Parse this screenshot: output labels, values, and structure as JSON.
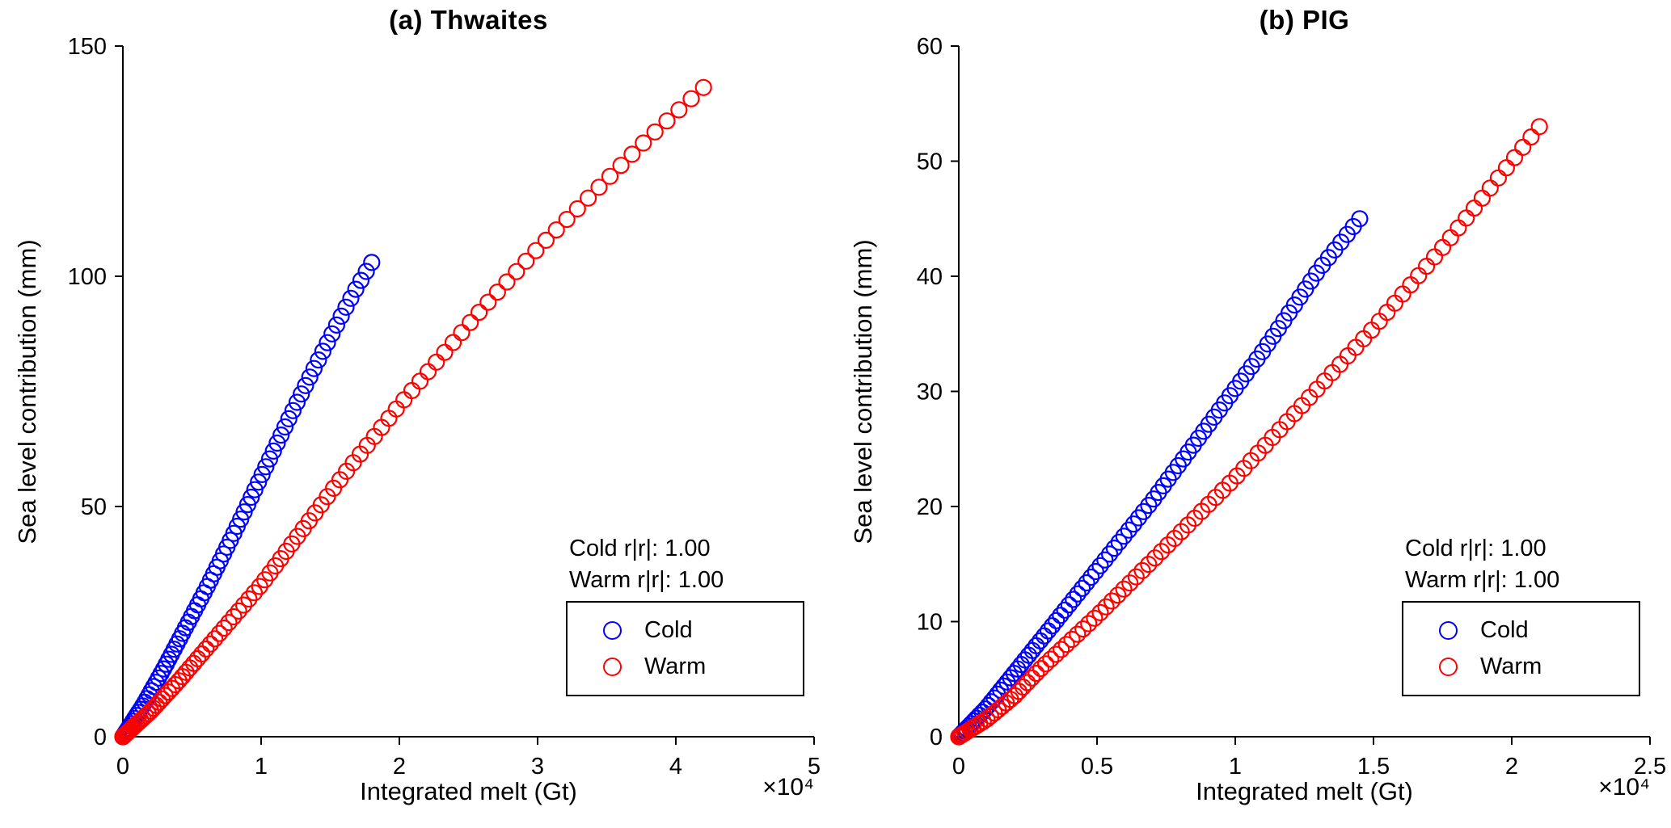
{
  "figure": {
    "background": "#ffffff",
    "text_color": "#000000"
  },
  "chart_data": [
    {
      "type": "scatter",
      "title": "(a) Thwaites",
      "xlabel": "Integrated melt (Gt)",
      "ylabel": "Sea level contribution (mm)",
      "x_offset_label": "×10⁴",
      "x_scale_factor": 10000,
      "xlim": [
        0,
        5
      ],
      "ylim": [
        0,
        150
      ],
      "xticks": [
        0,
        1,
        2,
        3,
        4,
        5
      ],
      "yticks": [
        0,
        50,
        100,
        150
      ],
      "grid": false,
      "annotations": [
        "Cold r|r|: 1.00",
        "Warm r|r|: 1.00"
      ],
      "legend": {
        "position": "lower right",
        "entries": [
          {
            "label": "Cold",
            "color": "#0000ff"
          },
          {
            "label": "Warm",
            "color": "#ff0000"
          }
        ]
      },
      "series": [
        {
          "name": "Cold",
          "color": "#0000ff",
          "marker": "circle",
          "n_markers": 80,
          "density_power": 1.55,
          "points": [
            [
              0,
              0
            ],
            [
              0.15,
              7
            ],
            [
              0.3,
              15
            ],
            [
              0.45,
              23.5
            ],
            [
              0.6,
              32
            ],
            [
              0.8,
              44
            ],
            [
              1.0,
              56.5
            ],
            [
              1.2,
              69
            ],
            [
              1.4,
              81
            ],
            [
              1.6,
              92.5
            ],
            [
              1.7,
              98
            ],
            [
              1.8,
              103
            ]
          ]
        },
        {
          "name": "Warm",
          "color": "#ff0000",
          "marker": "circle",
          "n_markers": 100,
          "density_power": 1.9,
          "points": [
            [
              0,
              0
            ],
            [
              0.2,
              5.5
            ],
            [
              0.4,
              12
            ],
            [
              0.6,
              19
            ],
            [
              0.8,
              26
            ],
            [
              1.0,
              33
            ],
            [
              1.2,
              41
            ],
            [
              1.4,
              49
            ],
            [
              1.6,
              57
            ],
            [
              1.8,
              64.5
            ],
            [
              2.0,
              72
            ],
            [
              2.2,
              79
            ],
            [
              2.4,
              86
            ],
            [
              2.6,
              93
            ],
            [
              2.8,
              99.5
            ],
            [
              3.0,
              106
            ],
            [
              3.2,
              112
            ],
            [
              3.4,
              118
            ],
            [
              3.6,
              124
            ],
            [
              3.8,
              130
            ],
            [
              4.0,
              135.5
            ],
            [
              4.2,
              141
            ]
          ]
        }
      ]
    },
    {
      "type": "scatter",
      "title": "(b) PIG",
      "xlabel": "Integrated melt (Gt)",
      "ylabel": "Sea level contribution (mm)",
      "x_offset_label": "×10⁴",
      "x_scale_factor": 10000,
      "xlim": [
        0,
        2.5
      ],
      "ylim": [
        0,
        60
      ],
      "xticks": [
        0,
        0.5,
        1,
        1.5,
        2,
        2.5
      ],
      "yticks": [
        0,
        10,
        20,
        30,
        40,
        50,
        60
      ],
      "grid": false,
      "annotations": [
        "Cold r|r|: 1.00",
        "Warm r|r|: 1.00"
      ],
      "legend": {
        "position": "lower right",
        "entries": [
          {
            "label": "Cold",
            "color": "#0000ff"
          },
          {
            "label": "Warm",
            "color": "#ff0000"
          }
        ]
      },
      "series": [
        {
          "name": "Cold",
          "color": "#0000ff",
          "marker": "circle",
          "n_markers": 92,
          "density_power": 1.4,
          "points": [
            [
              0,
              0
            ],
            [
              0.1,
              2.5
            ],
            [
              0.2,
              5.5
            ],
            [
              0.3,
              8.5
            ],
            [
              0.5,
              14.5
            ],
            [
              0.7,
              20.5
            ],
            [
              0.9,
              27
            ],
            [
              1.1,
              33.5
            ],
            [
              1.3,
              40.5
            ],
            [
              1.4,
              43.5
            ],
            [
              1.45,
              45
            ]
          ]
        },
        {
          "name": "Warm",
          "color": "#ff0000",
          "marker": "circle",
          "n_markers": 96,
          "density_power": 1.5,
          "points": [
            [
              0,
              0
            ],
            [
              0.1,
              1.5
            ],
            [
              0.2,
              3.5
            ],
            [
              0.3,
              6
            ],
            [
              0.5,
              10.5
            ],
            [
              0.75,
              16.5
            ],
            [
              1.0,
              22.5
            ],
            [
              1.25,
              29
            ],
            [
              1.5,
              35.5
            ],
            [
              1.75,
              42.5
            ],
            [
              2.0,
              50
            ],
            [
              2.1,
              53
            ]
          ]
        }
      ]
    }
  ]
}
